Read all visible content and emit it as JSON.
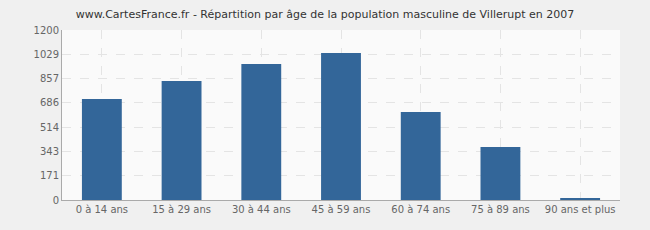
{
  "chart_data": {
    "type": "bar",
    "title": "www.CartesFrance.fr - Répartition par âge de la population masculine de Villerupt en 2007",
    "categories": [
      "0 à 14 ans",
      "15 à 29 ans",
      "30 à 44 ans",
      "45 à 59 ans",
      "60 à 74 ans",
      "75 à 89 ans",
      "90 ans et plus"
    ],
    "values": [
      713,
      840,
      960,
      1038,
      621,
      374,
      14
    ],
    "color": "#336699",
    "ylim": [
      0,
      1200
    ],
    "yticks": [
      0,
      171,
      343,
      514,
      686,
      857,
      1029,
      1200
    ],
    "grid": true
  }
}
